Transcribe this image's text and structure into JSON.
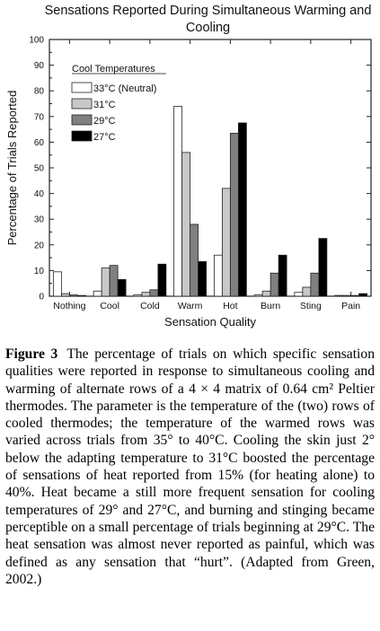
{
  "chart_data": {
    "type": "bar",
    "title": "Sensations Reported During Simultaneous Warming and Cooling",
    "xlabel": "Sensation Quality",
    "ylabel": "Percentage of Trials Reported",
    "ylim": [
      0,
      100
    ],
    "yticks": [
      0,
      10,
      20,
      30,
      40,
      50,
      60,
      70,
      80,
      90,
      100
    ],
    "categories": [
      "Nothing",
      "Cool",
      "Cold",
      "Warm",
      "Hot",
      "Burn",
      "Sting",
      "Pain"
    ],
    "legend_title": "Cool Temperatures",
    "legend_position": "top-left",
    "series": [
      {
        "name": "33°C (Neutral)",
        "color": "#ffffff",
        "values": [
          9.5,
          2.0,
          0.5,
          74.0,
          16.0,
          0.5,
          1.5,
          0.3
        ]
      },
      {
        "name": "31°C",
        "color": "#c8c8c8",
        "values": [
          1.0,
          11.0,
          1.5,
          56.0,
          42.0,
          2.0,
          3.5,
          0.3
        ]
      },
      {
        "name": "29°C",
        "color": "#808080",
        "values": [
          0.5,
          12.0,
          2.5,
          28.0,
          63.5,
          9.0,
          9.0,
          0.3
        ]
      },
      {
        "name": "27°C",
        "color": "#000000",
        "values": [
          0.3,
          6.5,
          12.5,
          13.5,
          67.5,
          16.0,
          22.5,
          1.0
        ]
      }
    ]
  },
  "caption": {
    "label": "Figure 3",
    "text": "The percentage of trials on which specific sensation qualities were reported in response to simultaneous cooling and warming of alternate rows of a 4 × 4 matrix of 0.64 cm² Peltier thermodes. The parameter is the temperature of the (two) rows of cooled thermodes; the temperature of the warmed rows was varied across trials from 35° to 40°C. Cooling the skin just 2° below the adapting temperature to 31°C boosted the percentage of sensations of heat reported from 15% (for heating alone) to 40%. Heat became a still more frequent sensation for cooling temperatures of 29° and 27°C, and burning and stinging became perceptible on a small percentage of trials beginning at 29°C. The heat sensation was almost never reported as painful, which was defined as any sensation that “hurt”. (Adapted from Green, 2002.)"
  }
}
